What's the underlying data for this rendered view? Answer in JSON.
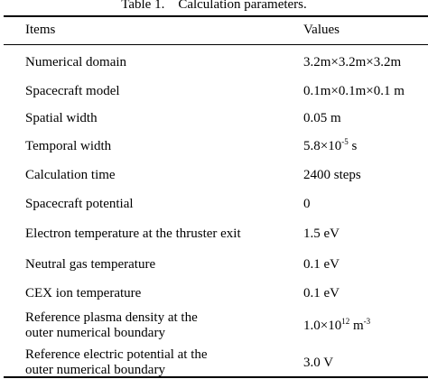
{
  "caption": "Table 1.    Calculation parameters.",
  "header": {
    "items": "Items",
    "values": "Values"
  },
  "rows": [
    {
      "item": [
        "Numerical domain"
      ],
      "value": {
        "base": "3.2m×3.2m×3.2m",
        "sup": "",
        "tail": ""
      }
    },
    {
      "item": [
        "Spacecraft model"
      ],
      "value": {
        "base": "0.1m×0.1m×0.1 m",
        "sup": "",
        "tail": ""
      }
    },
    {
      "item": [
        "Spatial width"
      ],
      "value": {
        "base": "0.05 m",
        "sup": "",
        "tail": ""
      }
    },
    {
      "item": [
        "Temporal width"
      ],
      "value": {
        "base": "5.8×10",
        "sup": "-5",
        "tail": " s"
      }
    },
    {
      "item": [
        "Calculation time"
      ],
      "value": {
        "base": "2400 steps",
        "sup": "",
        "tail": ""
      }
    },
    {
      "item": [
        "Spacecraft potential"
      ],
      "value": {
        "base": "0",
        "sup": "",
        "tail": ""
      }
    },
    {
      "item": [
        "Electron temperature at the thruster exit"
      ],
      "value": {
        "base": "1.5 eV",
        "sup": "",
        "tail": ""
      }
    },
    {
      "item": [
        "Neutral gas temperature"
      ],
      "value": {
        "base": "0.1 eV",
        "sup": "",
        "tail": ""
      }
    },
    {
      "item": [
        "CEX ion temperature"
      ],
      "value": {
        "base": "0.1 eV",
        "sup": "",
        "tail": ""
      }
    },
    {
      "item": [
        "Reference plasma density at the",
        "outer numerical boundary"
      ],
      "value": {
        "base": "1.0×10",
        "sup": "12",
        "tail": " m",
        "sup2": "-3"
      }
    },
    {
      "item": [
        "Reference electric potential at the",
        "outer numerical boundary"
      ],
      "value": {
        "base": "3.0 V",
        "sup": "",
        "tail": ""
      }
    }
  ]
}
